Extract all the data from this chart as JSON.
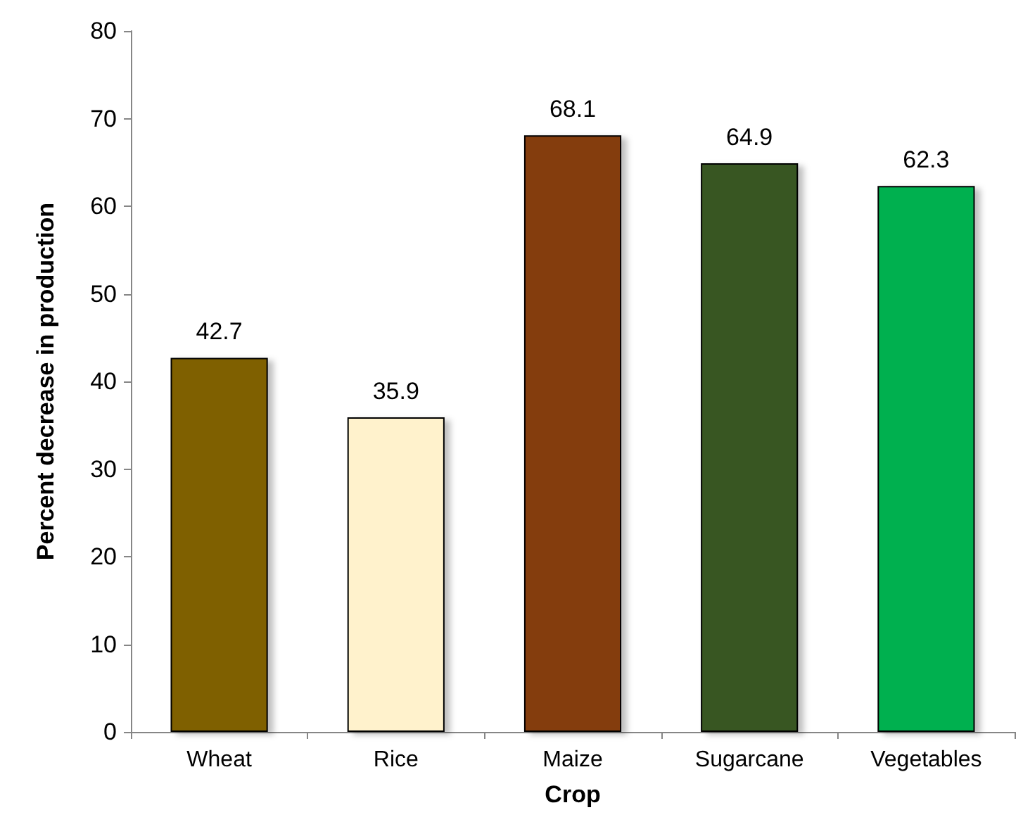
{
  "chart_data": {
    "type": "bar",
    "xlabel": "Crop",
    "ylabel": "Percent decrease in production",
    "categories": [
      "Wheat",
      "Rice",
      "Maize",
      "Sugarcane",
      "Vegetables"
    ],
    "values": [
      42.7,
      35.9,
      68.1,
      64.9,
      62.3
    ],
    "colors": [
      "#7f6000",
      "#fff2cc",
      "#843c0c",
      "#375623",
      "#00b050"
    ],
    "ylim": [
      0,
      80
    ],
    "yticks": [
      0,
      10,
      20,
      30,
      40,
      50,
      60,
      70,
      80
    ],
    "grid": false,
    "data_labels": true
  }
}
